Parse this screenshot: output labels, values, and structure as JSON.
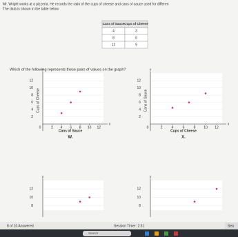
{
  "header": {
    "line1": "Mr. Wright works at a pizzeria. He records the ratio of the cups of cheese and cans of sauce used for differen",
    "line2": "The data is shown in the table below."
  },
  "table": {
    "columns": [
      "Cans of Sauce",
      "Cups of Cheese"
    ],
    "rows": [
      [
        4,
        3
      ],
      [
        8,
        6
      ],
      [
        12,
        9
      ]
    ]
  },
  "question": "Which of the following represents these pairs of values on the graph?",
  "graphs": [
    {
      "label": "W.",
      "xlabel": "Cans of Sauce",
      "ylabel": "Cups of Cheese",
      "y_axis_letter": "y",
      "x_axis_letter": "x",
      "xlim": [
        0,
        13
      ],
      "ylim": [
        0,
        13
      ],
      "xticks": [
        0,
        2,
        4,
        6,
        8,
        10,
        12
      ],
      "yticks": [
        2,
        4,
        6,
        8,
        10,
        12
      ],
      "points": {
        "x": [
          4,
          6,
          8
        ],
        "y": [
          3,
          6,
          9
        ]
      }
    },
    {
      "label": "X.",
      "xlabel": "Cups of Cheese",
      "ylabel": "Cans of Sauce",
      "y_axis_letter": "y",
      "x_axis_letter": "x",
      "xlim": [
        0,
        13
      ],
      "ylim": [
        0,
        13
      ],
      "xticks": [
        0,
        2,
        4,
        6,
        8,
        10,
        12
      ],
      "yticks": [
        2,
        4,
        6,
        8,
        10,
        12
      ],
      "points": {
        "x": [
          4,
          7,
          10
        ],
        "y": [
          4.5,
          6,
          8.5
        ]
      }
    },
    {
      "y_axis_letter": "y",
      "xlim": [
        0,
        13
      ],
      "ylim": [
        7,
        13
      ],
      "yticks": [
        8,
        10,
        12
      ],
      "points": {
        "x": [
          8,
          10
        ],
        "y": [
          9,
          10
        ]
      }
    },
    {
      "y_axis_letter": "y",
      "xlim": [
        0,
        13
      ],
      "ylim": [
        7,
        13
      ],
      "yticks": [
        8,
        10,
        12
      ],
      "points": {
        "x": [
          8,
          12
        ],
        "y": [
          9,
          12
        ]
      }
    }
  ],
  "footer": {
    "progress": "8 of 10 Answered",
    "timer": "Session Timer: 2:31",
    "search_button": "Sea"
  },
  "taskbar": {
    "search": "Search"
  }
}
